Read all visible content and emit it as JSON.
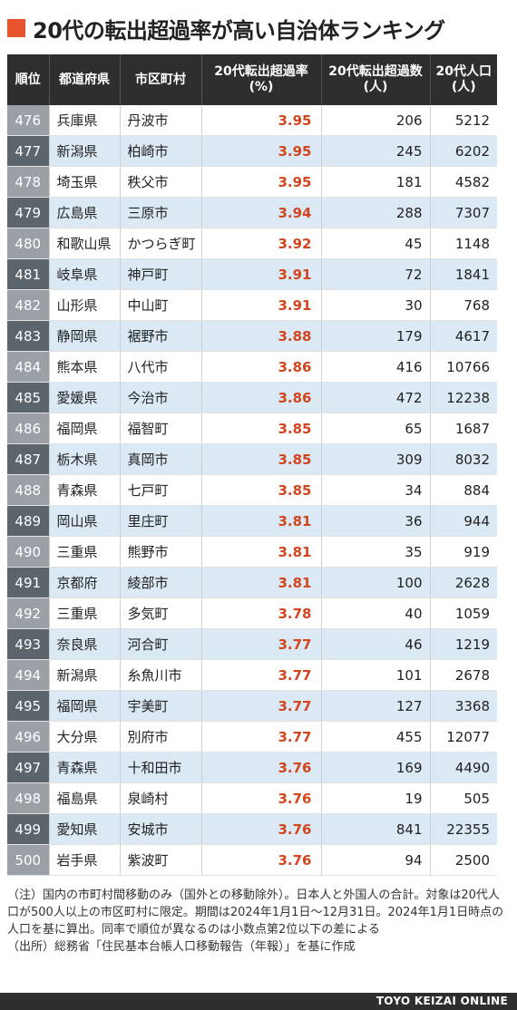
{
  "title": "20代の転出超過率が高い自治体ランキング",
  "columns": {
    "rank": "順位",
    "prefecture": "都道府県",
    "city": "市区町村",
    "rate_line1": "20代転出超過率",
    "rate_line2": "(%)",
    "excess_line1": "20代転出超過数",
    "excess_line2": "(人)",
    "pop_line1": "20代人口",
    "pop_line2": "(人)"
  },
  "rows": [
    {
      "rank": "476",
      "prefecture": "兵庫県",
      "city": "丹波市",
      "rate": "3.95",
      "excess": "206",
      "population": "5212"
    },
    {
      "rank": "477",
      "prefecture": "新潟県",
      "city": "柏崎市",
      "rate": "3.95",
      "excess": "245",
      "population": "6202"
    },
    {
      "rank": "478",
      "prefecture": "埼玉県",
      "city": "秩父市",
      "rate": "3.95",
      "excess": "181",
      "population": "4582"
    },
    {
      "rank": "479",
      "prefecture": "広島県",
      "city": "三原市",
      "rate": "3.94",
      "excess": "288",
      "population": "7307"
    },
    {
      "rank": "480",
      "prefecture": "和歌山県",
      "city": "かつらぎ町",
      "rate": "3.92",
      "excess": "45",
      "population": "1148"
    },
    {
      "rank": "481",
      "prefecture": "岐阜県",
      "city": "神戸町",
      "rate": "3.91",
      "excess": "72",
      "population": "1841"
    },
    {
      "rank": "482",
      "prefecture": "山形県",
      "city": "中山町",
      "rate": "3.91",
      "excess": "30",
      "population": "768"
    },
    {
      "rank": "483",
      "prefecture": "静岡県",
      "city": "裾野市",
      "rate": "3.88",
      "excess": "179",
      "population": "4617"
    },
    {
      "rank": "484",
      "prefecture": "熊本県",
      "city": "八代市",
      "rate": "3.86",
      "excess": "416",
      "population": "10766"
    },
    {
      "rank": "485",
      "prefecture": "愛媛県",
      "city": "今治市",
      "rate": "3.86",
      "excess": "472",
      "population": "12238"
    },
    {
      "rank": "486",
      "prefecture": "福岡県",
      "city": "福智町",
      "rate": "3.85",
      "excess": "65",
      "population": "1687"
    },
    {
      "rank": "487",
      "prefecture": "栃木県",
      "city": "真岡市",
      "rate": "3.85",
      "excess": "309",
      "population": "8032"
    },
    {
      "rank": "488",
      "prefecture": "青森県",
      "city": "七戸町",
      "rate": "3.85",
      "excess": "34",
      "population": "884"
    },
    {
      "rank": "489",
      "prefecture": "岡山県",
      "city": "里庄町",
      "rate": "3.81",
      "excess": "36",
      "population": "944"
    },
    {
      "rank": "490",
      "prefecture": "三重県",
      "city": "熊野市",
      "rate": "3.81",
      "excess": "35",
      "population": "919"
    },
    {
      "rank": "491",
      "prefecture": "京都府",
      "city": "綾部市",
      "rate": "3.81",
      "excess": "100",
      "population": "2628"
    },
    {
      "rank": "492",
      "prefecture": "三重県",
      "city": "多気町",
      "rate": "3.78",
      "excess": "40",
      "population": "1059"
    },
    {
      "rank": "493",
      "prefecture": "奈良県",
      "city": "河合町",
      "rate": "3.77",
      "excess": "46",
      "population": "1219"
    },
    {
      "rank": "494",
      "prefecture": "新潟県",
      "city": "糸魚川市",
      "rate": "3.77",
      "excess": "101",
      "population": "2678"
    },
    {
      "rank": "495",
      "prefecture": "福岡県",
      "city": "宇美町",
      "rate": "3.77",
      "excess": "127",
      "population": "3368"
    },
    {
      "rank": "496",
      "prefecture": "大分県",
      "city": "別府市",
      "rate": "3.77",
      "excess": "455",
      "population": "12077"
    },
    {
      "rank": "497",
      "prefecture": "青森県",
      "city": "十和田市",
      "rate": "3.76",
      "excess": "169",
      "population": "4490"
    },
    {
      "rank": "498",
      "prefecture": "福島県",
      "city": "泉崎村",
      "rate": "3.76",
      "excess": "19",
      "population": "505"
    },
    {
      "rank": "499",
      "prefecture": "愛知県",
      "city": "安城市",
      "rate": "3.76",
      "excess": "841",
      "population": "22355"
    },
    {
      "rank": "500",
      "prefecture": "岩手県",
      "city": "紫波町",
      "rate": "3.76",
      "excess": "94",
      "population": "2500"
    }
  ],
  "notes": {
    "note": "（注）国内の市町村間移動のみ（国外との移動除外）。日本人と外国人の合計。対象は20代人口が500人以上の市区町村に限定。期間は2024年1月1日〜12月31日。2024年1月1日時点の人口を基に算出。同率で順位が異なるのは小数点第2位以下の差による",
    "source": "（出所）総務省「住民基本台帳人口移動報告（年報）」を基に作成"
  },
  "credit": "TOYO KEIZAI ONLINE",
  "colors": {
    "accent": "#e8542e",
    "rate_text": "#d2451e",
    "header_bg": "#2e2e2e",
    "row_alt_bg": "#dbe9f5"
  }
}
